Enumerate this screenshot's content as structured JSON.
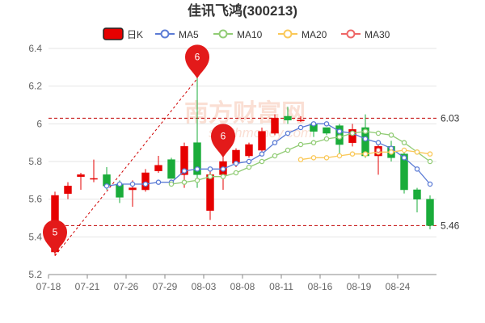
{
  "chart_data": {
    "type": "candlestick",
    "title": "佳讯飞鸿(300213)",
    "legend": [
      {
        "key": "k",
        "label": "日K",
        "color": "#e60000",
        "shape": "rect"
      },
      {
        "key": "ma5",
        "label": "MA5",
        "color": "#5b7bd5",
        "shape": "circle"
      },
      {
        "key": "ma10",
        "label": "MA10",
        "color": "#91cc75",
        "shape": "circle"
      },
      {
        "key": "ma20",
        "label": "MA20",
        "color": "#fac858",
        "shape": "circle"
      },
      {
        "key": "ma30",
        "label": "MA30",
        "color": "#ee6666",
        "shape": "circle"
      }
    ],
    "up_color": "#e60000",
    "down_color": "#1aac3a",
    "ylim": [
      5.2,
      6.4
    ],
    "yticks": [
      "5.2",
      "5.4",
      "5.6",
      "5.8",
      "6",
      "6.2",
      "6.4"
    ],
    "yticks_val": [
      5.2,
      5.4,
      5.6,
      5.8,
      6.0,
      6.2,
      6.4
    ],
    "xtick_labels": [
      "07-18",
      "07-21",
      "07-26",
      "07-29",
      "08-03",
      "08-08",
      "08-11",
      "08-16",
      "08-19",
      "08-24"
    ],
    "xtick_index": [
      0,
      3,
      6,
      9,
      12,
      15,
      18,
      21,
      24,
      27
    ],
    "candles": [
      {
        "o": 5.32,
        "c": 5.62,
        "h": 5.64,
        "l": 5.3
      },
      {
        "o": 5.63,
        "c": 5.67,
        "h": 5.69,
        "l": 5.6
      },
      {
        "o": 5.72,
        "c": 5.73,
        "h": 5.74,
        "l": 5.65
      },
      {
        "o": 5.71,
        "c": 5.71,
        "h": 5.81,
        "l": 5.69
      },
      {
        "o": 5.73,
        "c": 5.67,
        "h": 5.77,
        "l": 5.65
      },
      {
        "o": 5.68,
        "c": 5.61,
        "h": 5.7,
        "l": 5.58
      },
      {
        "o": 5.65,
        "c": 5.66,
        "h": 5.7,
        "l": 5.56
      },
      {
        "o": 5.65,
        "c": 5.74,
        "h": 5.76,
        "l": 5.64
      },
      {
        "o": 5.75,
        "c": 5.78,
        "h": 5.83,
        "l": 5.74
      },
      {
        "o": 5.81,
        "c": 5.71,
        "h": 5.82,
        "l": 5.71
      },
      {
        "o": 5.73,
        "c": 5.88,
        "h": 5.9,
        "l": 5.66
      },
      {
        "o": 5.9,
        "c": 5.73,
        "h": 6.25,
        "l": 5.66
      },
      {
        "o": 5.54,
        "c": 5.73,
        "h": 5.76,
        "l": 5.49
      },
      {
        "o": 5.73,
        "c": 5.8,
        "h": 5.91,
        "l": 5.65
      },
      {
        "o": 5.79,
        "c": 5.86,
        "h": 5.87,
        "l": 5.77
      },
      {
        "o": 5.83,
        "c": 5.89,
        "h": 5.9,
        "l": 5.82
      },
      {
        "o": 5.86,
        "c": 5.96,
        "h": 5.98,
        "l": 5.85
      },
      {
        "o": 5.95,
        "c": 6.03,
        "h": 6.05,
        "l": 5.94
      },
      {
        "o": 6.04,
        "c": 6.02,
        "h": 6.09,
        "l": 6.0
      },
      {
        "o": 6.02,
        "c": 6.02,
        "h": 6.04,
        "l": 6.01
      },
      {
        "o": 6.0,
        "c": 5.96,
        "h": 6.01,
        "l": 5.93
      },
      {
        "o": 5.98,
        "c": 5.95,
        "h": 5.98,
        "l": 5.94
      },
      {
        "o": 5.99,
        "c": 5.89,
        "h": 6.0,
        "l": 5.84
      },
      {
        "o": 5.9,
        "c": 5.97,
        "h": 6.0,
        "l": 5.88
      },
      {
        "o": 5.98,
        "c": 5.83,
        "h": 6.05,
        "l": 5.82
      },
      {
        "o": 5.83,
        "c": 5.88,
        "h": 5.9,
        "l": 5.73
      },
      {
        "o": 5.88,
        "c": 5.82,
        "h": 5.91,
        "l": 5.8
      },
      {
        "o": 5.84,
        "c": 5.65,
        "h": 5.85,
        "l": 5.63
      },
      {
        "o": 5.65,
        "c": 5.6,
        "h": 5.66,
        "l": 5.53
      },
      {
        "o": 5.6,
        "c": 5.46,
        "h": 5.62,
        "l": 5.44
      }
    ],
    "ma5": [
      null,
      null,
      null,
      null,
      5.67,
      5.68,
      5.68,
      5.68,
      5.69,
      5.69,
      5.75,
      5.76,
      5.76,
      5.76,
      5.79,
      5.8,
      5.84,
      5.9,
      5.95,
      5.98,
      6.0,
      6.0,
      5.96,
      5.95,
      5.92,
      5.9,
      5.87,
      5.82,
      5.76,
      5.68
    ],
    "ma10": [
      null,
      null,
      null,
      null,
      null,
      null,
      null,
      null,
      null,
      5.68,
      5.69,
      5.7,
      5.72,
      5.72,
      5.74,
      5.77,
      5.8,
      5.83,
      5.86,
      5.89,
      5.9,
      5.92,
      5.93,
      5.95,
      5.96,
      5.95,
      5.94,
      5.9,
      5.85,
      5.8
    ],
    "ma20": [
      null,
      null,
      null,
      null,
      null,
      null,
      null,
      null,
      null,
      null,
      null,
      null,
      null,
      null,
      null,
      null,
      null,
      null,
      null,
      5.81,
      5.82,
      5.82,
      5.83,
      5.84,
      5.84,
      5.85,
      5.85,
      5.86,
      5.85,
      5.84
    ],
    "ma30": [
      null,
      null,
      null,
      null,
      null,
      null,
      null,
      null,
      null,
      null,
      null,
      null,
      null,
      null,
      null,
      null,
      null,
      null,
      null,
      null,
      null,
      null,
      null,
      null,
      null,
      5.86,
      null,
      null,
      null,
      null
    ],
    "ref_lines": [
      {
        "value": 6.03,
        "label": "6.03"
      },
      {
        "value": 5.46,
        "label": "5.46"
      }
    ],
    "markers": [
      {
        "index": 0,
        "value": 5.31,
        "label": "5"
      },
      {
        "index": 11,
        "value": 6.24,
        "label": "6"
      },
      {
        "index": 13,
        "value": 5.82,
        "label": "6"
      }
    ],
    "trend_line": {
      "from_index": 0,
      "from_value": 5.3,
      "to_index": 11,
      "to_value": 6.24
    },
    "watermark": "南方财富网",
    "watermark_sub": "southmoney.com"
  }
}
